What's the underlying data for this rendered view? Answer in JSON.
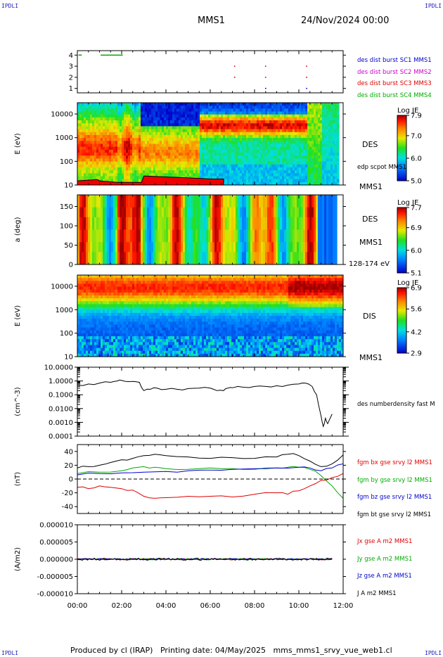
{
  "header": {
    "corner_tl": "IPDLI",
    "corner_tr": "IPDLI",
    "corner_bl": "IPDLI",
    "corner_br": "IPDLI",
    "title": "MMS1",
    "date": "24/Nov/2024 00:00"
  },
  "footer": {
    "produced_by": "Produced by cl (IRAP)",
    "printing_date": "Printing date: 04/May/2025",
    "source": "mms_mms1_srvy_vue_web1.cl"
  },
  "time_axis": {
    "labels": [
      "00:00",
      "02:00",
      "04:00",
      "06:00",
      "08:00",
      "10:00",
      "12:00"
    ],
    "range_hours": [
      0,
      12
    ]
  },
  "colors": {
    "mms1": "#0000cc",
    "mms2": "#cc00cc",
    "mms3": "#dd0000",
    "mms4": "#00aa00",
    "bx": "#dd0000",
    "by": "#00aa00",
    "bz": "#0000cc",
    "bt": "#000000"
  },
  "chart_data": [
    {
      "type": "scatter",
      "panel": "burst",
      "yticks": [
        "4",
        "3",
        "2",
        "1"
      ],
      "ylim": [
        0.6,
        4.4
      ],
      "legend": [
        "des dist burst SC1 MMS1",
        "des dist burst SC2 MMS2",
        "des dist burst SC3 MMS3",
        "des dist burst SC4 MMS4"
      ],
      "series": [
        {
          "level": 4,
          "segments": [
            [
              0.05,
              0.2
            ],
            [
              1.05,
              2.05
            ]
          ]
        },
        {
          "level": 3,
          "points": [
            7.1,
            8.5,
            10.35
          ]
        },
        {
          "level": 2,
          "points": [
            7.1,
            8.5,
            10.35
          ]
        },
        {
          "level": 1,
          "points": [
            8.5,
            10.35
          ]
        }
      ]
    },
    {
      "type": "heatmap",
      "panel": "des_energy",
      "ylabel": "E (eV)",
      "yticks": [
        "10000",
        "1000",
        "100",
        "10"
      ],
      "ylim": [
        10,
        30000
      ],
      "label": "DES",
      "sublabel": "edp scpot MMS1",
      "instrument": "MMS1",
      "colorbar": {
        "title": "Log JE",
        "ticks": [
          "7.9",
          "7.0",
          "6.0",
          "5.0"
        ],
        "range": [
          5.0,
          7.9
        ]
      },
      "scpot_trace": {
        "t": [
          0,
          0.9,
          1.0,
          1.8,
          2.9,
          3.0,
          4.0,
          5.0,
          6.0,
          6.6
        ],
        "e": [
          15,
          17,
          15,
          13,
          13,
          24,
          22,
          20,
          18,
          18
        ]
      }
    },
    {
      "type": "heatmap",
      "panel": "des_pitch",
      "ylabel": "a (deg)",
      "yticks": [
        "150",
        "100",
        "50",
        "0"
      ],
      "ylim": [
        0,
        180
      ],
      "label": "DES",
      "instrument": "MMS1",
      "energy_range": "128-174 eV",
      "colorbar": {
        "title": "Log JE",
        "ticks": [
          "7.7",
          "6.9",
          "6.0",
          "5.1"
        ],
        "range": [
          5.1,
          7.7
        ]
      }
    },
    {
      "type": "heatmap",
      "panel": "dis_energy",
      "ylabel": "E (eV)",
      "yticks": [
        "10000",
        "1000",
        "100",
        "10"
      ],
      "ylim": [
        10,
        30000
      ],
      "label": "DIS",
      "instrument": "MMS1",
      "colorbar": {
        "title": "Log JE",
        "ticks": [
          "6.9",
          "5.6",
          "4.2",
          "2.9"
        ],
        "range": [
          2.9,
          6.9
        ]
      }
    },
    {
      "type": "line",
      "panel": "density",
      "ylabel": "(cm^-3)",
      "yticks": [
        "10.0000",
        "1.0000",
        "0.1000",
        "0.0100",
        "0.0010",
        "0.0001"
      ],
      "ylim": [
        0.0001,
        10
      ],
      "log": true,
      "series": [
        {
          "name": "des numberdensity fast M",
          "t": [
            0,
            0.5,
            1.0,
            1.5,
            1.8,
            2.0,
            2.3,
            2.8,
            3.0,
            3.3,
            3.6,
            4.0,
            4.5,
            5.0,
            5.5,
            6.0,
            6.3,
            6.6,
            6.8,
            7.0,
            7.5,
            8.0,
            8.5,
            9.0,
            9.5,
            10.0,
            10.3,
            10.6,
            10.8,
            11.0,
            11.1,
            11.2,
            11.3,
            11.5
          ],
          "y": [
            0.5,
            0.6,
            0.7,
            0.8,
            1.0,
            1.1,
            0.9,
            0.8,
            0.2,
            0.25,
            0.3,
            0.25,
            0.25,
            0.28,
            0.3,
            0.3,
            0.2,
            0.2,
            0.3,
            0.32,
            0.35,
            0.4,
            0.4,
            0.45,
            0.5,
            0.6,
            0.7,
            0.4,
            0.1,
            0.003,
            0.0005,
            0.002,
            0.0008,
            0.004
          ]
        }
      ]
    },
    {
      "type": "line",
      "panel": "fgm",
      "ylabel": "(nT)",
      "yticks": [
        "40",
        "20",
        "0",
        "-20",
        "-40"
      ],
      "ylim": [
        -50,
        50
      ],
      "series": [
        {
          "name": "fgm bx gse srvy l2 MMS1",
          "t": [
            0,
            0.5,
            1,
            1.5,
            2,
            2.5,
            3,
            3.5,
            4,
            5,
            6,
            7,
            8,
            9,
            9.5,
            10,
            10.5,
            11,
            11.5,
            12
          ],
          "y": [
            -12,
            -14,
            -10,
            -12,
            -14,
            -16,
            -25,
            -28,
            -27,
            -25,
            -25,
            -26,
            -22,
            -20,
            -22,
            -17,
            -10,
            -2,
            2,
            8
          ]
        },
        {
          "name": "fgm by gse srvy l2 MMS1",
          "t": [
            0,
            1,
            2,
            2.5,
            3,
            3.5,
            4,
            5,
            6,
            7,
            8,
            9,
            9.5,
            10,
            10.5,
            11,
            11.5,
            12
          ],
          "y": [
            8,
            10,
            12,
            16,
            18,
            17,
            15,
            14,
            16,
            15,
            14,
            16,
            17,
            17,
            14,
            5,
            -10,
            -28
          ]
        },
        {
          "name": "fgm bz gse srvy l2 MMS1",
          "t": [
            0,
            1,
            2,
            3,
            4,
            5,
            6,
            7,
            8,
            9,
            10,
            10.5,
            11,
            11.5,
            12
          ],
          "y": [
            6,
            8,
            9,
            10,
            11,
            12,
            13,
            14,
            15,
            16,
            17,
            16,
            12,
            16,
            22
          ]
        },
        {
          "name": "fgm bt gse srvy l2 MMS1",
          "t": [
            0,
            0.5,
            1,
            1.5,
            2,
            2.5,
            3,
            3.5,
            4,
            5,
            6,
            7,
            8,
            9,
            9.5,
            10,
            10.5,
            11,
            11.5,
            12
          ],
          "y": [
            16,
            18,
            20,
            24,
            28,
            30,
            34,
            36,
            34,
            32,
            30,
            31,
            30,
            32,
            36,
            34,
            26,
            18,
            22,
            35
          ]
        }
      ]
    },
    {
      "type": "line",
      "panel": "current",
      "ylabel": "(A/m2)",
      "yticks": [
        "0.000010",
        "0.000005",
        "0.000000",
        "-0.000005",
        "-0.000010"
      ],
      "ylim": [
        -1e-05,
        1e-05
      ],
      "series": [
        {
          "name": "Jx gse A m2 MMS1",
          "flat": 0
        },
        {
          "name": "Jy gse A m2 MMS1",
          "flat": 0
        },
        {
          "name": "Jz gse A m2 MMS1",
          "flat": 0
        },
        {
          "name": "J A m2 MMS1",
          "flat": 0
        }
      ]
    }
  ]
}
